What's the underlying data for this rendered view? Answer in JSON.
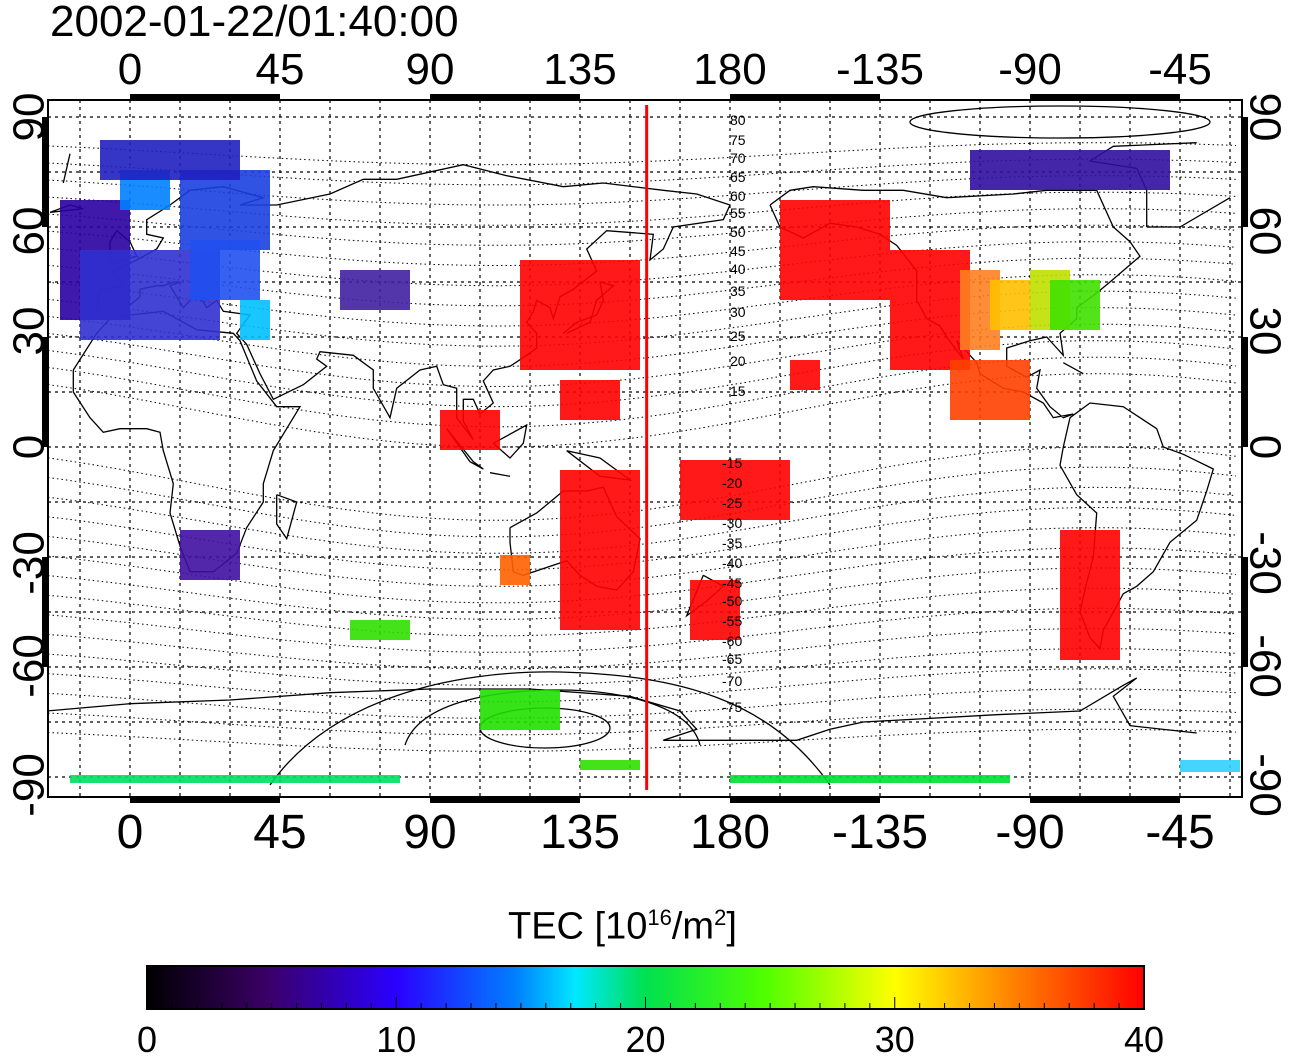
{
  "title": "2002-01-22/01:40:00",
  "colorbar": {
    "label_prefix": "TEC  [10",
    "label_exp1": "16",
    "label_mid": "/m",
    "label_exp2": "2",
    "label_suffix": "]",
    "min": 0,
    "max": 40,
    "ticks": [
      "0",
      "10",
      "20",
      "30",
      "40"
    ]
  },
  "map": {
    "longitude_ticks": [
      "0",
      "45",
      "90",
      "135",
      "180",
      "-135",
      "-90",
      "-45"
    ],
    "latitude_ticks": [
      "90",
      "60",
      "30",
      "0",
      "-30",
      "-60",
      "-90"
    ],
    "terminator_longitude": 155,
    "contour_labels_north": [
      "80",
      "75",
      "70",
      "65",
      "60",
      "55",
      "50",
      "45",
      "40",
      "35",
      "30",
      "25",
      "20",
      "15"
    ],
    "contour_labels_south": [
      "-15",
      "-20",
      "-25",
      "-30",
      "-35",
      "-40",
      "-45",
      "-50",
      "-55",
      "-60",
      "-65",
      "-70",
      "-75"
    ]
  }
}
